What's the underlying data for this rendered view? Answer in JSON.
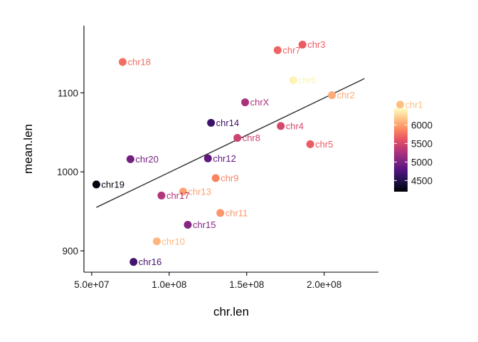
{
  "chart_data": {
    "type": "scatter",
    "xlabel": "chr.len",
    "ylabel": "mean.len",
    "xlim": [
      45000000,
      235000000
    ],
    "ylim": [
      873,
      1185
    ],
    "x_ticks": [
      {
        "value": 50000000,
        "label": "5.0e+07"
      },
      {
        "value": 100000000,
        "label": "1.0e+08"
      },
      {
        "value": 150000000,
        "label": "1.5e+08"
      },
      {
        "value": 200000000,
        "label": "2.0e+08"
      }
    ],
    "y_ticks": [
      {
        "value": 900,
        "label": "900"
      },
      {
        "value": 1000,
        "label": "1000"
      },
      {
        "value": 1100,
        "label": "1100"
      }
    ],
    "trend_line": {
      "x": [
        53000000,
        226000000
      ],
      "y": [
        955,
        1118
      ]
    },
    "color_scale": {
      "name": "magma",
      "range": [
        4200,
        6450
      ],
      "stops": [
        "#000004",
        "#1d1147",
        "#51127c",
        "#832681",
        "#b73779",
        "#e75263",
        "#fc8961",
        "#fec488",
        "#fcfdbf"
      ],
      "ticks": [
        {
          "value": 4500,
          "label": "4500"
        },
        {
          "value": 5000,
          "label": "5000"
        },
        {
          "value": 5500,
          "label": "5500"
        },
        {
          "value": 6000,
          "label": "6000"
        }
      ]
    },
    "points": [
      {
        "label": "chr1",
        "x": 249000000,
        "y": 1085,
        "c": 6150
      },
      {
        "label": "chr2",
        "x": 205000000,
        "y": 1097,
        "c": 6050
      },
      {
        "label": "chr3",
        "x": 186000000,
        "y": 1161,
        "c": 5650
      },
      {
        "label": "chr4",
        "x": 172000000,
        "y": 1058,
        "c": 5500
      },
      {
        "label": "chr5",
        "x": 191000000,
        "y": 1035,
        "c": 5650
      },
      {
        "label": "chr6",
        "x": 180000000,
        "y": 1116,
        "c": 6400
      },
      {
        "label": "chr7",
        "x": 170000000,
        "y": 1154,
        "c": 5700
      },
      {
        "label": "chr8",
        "x": 144000000,
        "y": 1043,
        "c": 5450
      },
      {
        "label": "chr9",
        "x": 130000000,
        "y": 992,
        "c": 5850
      },
      {
        "label": "chr10",
        "x": 92000000,
        "y": 912,
        "c": 6100
      },
      {
        "label": "chr11",
        "x": 133000000,
        "y": 948,
        "c": 5950
      },
      {
        "label": "chr12",
        "x": 125000000,
        "y": 1017,
        "c": 4850
      },
      {
        "label": "chr13",
        "x": 109000000,
        "y": 975,
        "c": 6000
      },
      {
        "label": "chr14",
        "x": 127000000,
        "y": 1062,
        "c": 4650
      },
      {
        "label": "chr15",
        "x": 112000000,
        "y": 933,
        "c": 5050
      },
      {
        "label": "chr16",
        "x": 77000000,
        "y": 886,
        "c": 4700
      },
      {
        "label": "chr17",
        "x": 95000000,
        "y": 970,
        "c": 5300
      },
      {
        "label": "chr18",
        "x": 70000000,
        "y": 1139,
        "c": 5750
      },
      {
        "label": "chr19",
        "x": 53000000,
        "y": 984,
        "c": 4250
      },
      {
        "label": "chr20",
        "x": 75000000,
        "y": 1016,
        "c": 4950
      },
      {
        "label": "chrX",
        "x": 149000000,
        "y": 1088,
        "c": 5250
      }
    ]
  }
}
